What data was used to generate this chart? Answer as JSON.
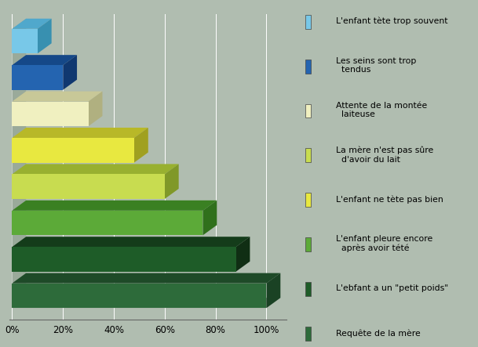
{
  "values": [
    100,
    88,
    75,
    60,
    48,
    30,
    20,
    10
  ],
  "bar_colors": [
    "#2d6b3a",
    "#1e5c28",
    "#5caa38",
    "#c8dc50",
    "#e8e840",
    "#f0f0c0",
    "#2464b0",
    "#78c8e8"
  ],
  "top_colors": [
    "#1e4a28",
    "#143c1a",
    "#3a8022",
    "#98b030",
    "#b8b828",
    "#c8c898",
    "#154888",
    "#50a8cc"
  ],
  "side_colors": [
    "#1a4224",
    "#102e14",
    "#30701c",
    "#809828",
    "#a0a020",
    "#b0b080",
    "#103870",
    "#3890b0"
  ],
  "background_color": "#b0bdb0",
  "plot_bg_color": "#b0bdb0",
  "xtick_values": [
    0,
    20,
    40,
    60,
    80,
    100
  ],
  "xtick_labels": [
    "0%",
    "20%",
    "40%",
    "60%",
    "80%",
    "100%"
  ],
  "legend_items": [
    [
      "L'enfant tète trop souvent",
      "#78c8e8"
    ],
    [
      "Les seins sont trop\n  tendus",
      "#2464b0"
    ],
    [
      "Attente de la montée\n  laiteuse",
      "#f0f0c0"
    ],
    [
      "La mère n'est pas sûre\n  d'avoir du lait",
      "#c8dc50"
    ],
    [
      "L'enfant ne tète pas bien",
      "#e8e840"
    ],
    [
      "L'enfant pleure encore\n  après avoir tété",
      "#5caa38"
    ],
    [
      "L'ebfant a un \"petit poids\"",
      "#1e5c28"
    ],
    [
      "Requête de la mère",
      "#2d6b3a"
    ]
  ]
}
